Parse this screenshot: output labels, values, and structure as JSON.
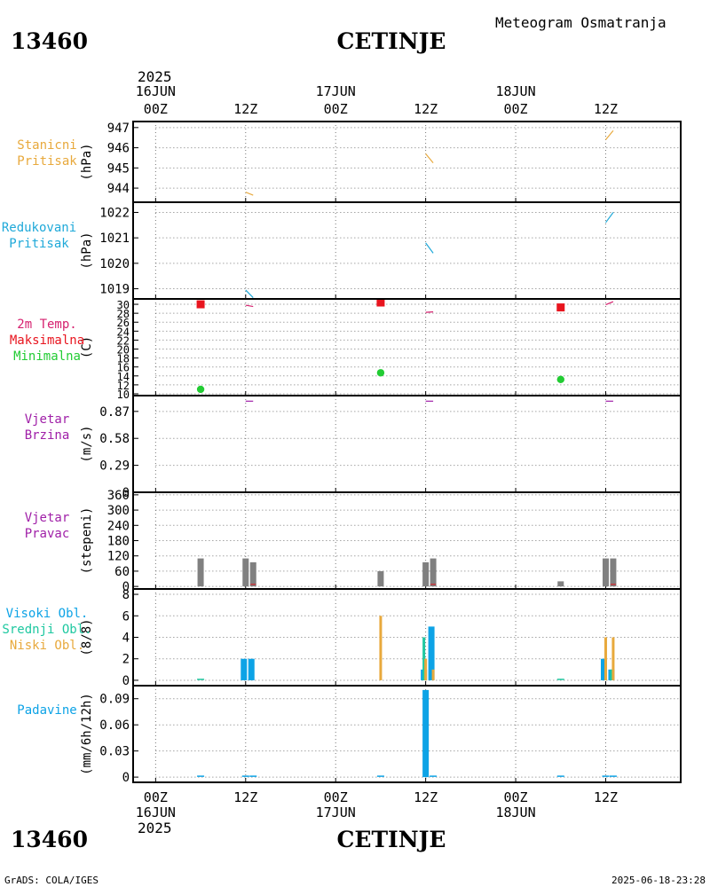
{
  "header": {
    "station_id": "13460",
    "station_name": "CETINJE",
    "meteogram_title": "Meteogram Osmatranja"
  },
  "footer": {
    "station_id": "13460",
    "station_name": "CETINJE",
    "credit": "GrADS: COLA/IGES",
    "timestamp": "2025-06-18-23:28"
  },
  "time_axis": {
    "top_year": "2025",
    "bottom_year": "2025",
    "dates": [
      {
        "label": "16JUN",
        "hour": 0
      },
      {
        "label": "17JUN",
        "hour": 24
      },
      {
        "label": "18JUN",
        "hour": 48
      }
    ],
    "ticks": [
      {
        "label": "00Z",
        "hour": 0
      },
      {
        "label": "12Z",
        "hour": 12
      },
      {
        "label": "00Z",
        "hour": 24
      },
      {
        "label": "12Z",
        "hour": 36
      },
      {
        "label": "00Z",
        "hour": 48
      },
      {
        "label": "12Z",
        "hour": 60
      }
    ],
    "xrange_hours": [
      -3,
      70
    ]
  },
  "colors": {
    "station_pressure": "#e8a93c",
    "reduced_pressure": "#1fa9d9",
    "temp_label": "#d6216f",
    "tmax": "#e8141e",
    "tmin": "#22cc33",
    "wind": "#a020a8",
    "bars_gray": "#808080",
    "high_cloud": "#0da3e6",
    "mid_cloud": "#1ec8a0",
    "low_cloud": "#e8a93c",
    "precip": "#0da3e6"
  },
  "chart_data": [
    {
      "id": "station_pressure",
      "type": "line",
      "label_lines": [
        "Stanicni",
        "Pritisak"
      ],
      "label_color": "#e8a93c",
      "ylabel": "(hPa)",
      "ylim": [
        943.3,
        947.3
      ],
      "yticks": [
        944,
        945,
        946,
        947
      ],
      "series": [
        {
          "name": "Stanicni Pritisak",
          "color": "#e8a93c",
          "segments": [
            [
              [
                12,
                943.8
              ],
              [
                13,
                943.65
              ]
            ],
            [
              [
                36,
                945.7
              ],
              [
                37,
                945.25
              ]
            ],
            [
              [
                60,
                946.4
              ],
              [
                61,
                946.85
              ]
            ]
          ]
        }
      ]
    },
    {
      "id": "reduced_pressure",
      "type": "line",
      "label_lines": [
        "Redukovani",
        "Pritisak"
      ],
      "label_color": "#1fa9d9",
      "ylabel": "(hPa)",
      "ylim": [
        1018.6,
        1022.4
      ],
      "yticks": [
        1019,
        1020,
        1021,
        1022
      ],
      "series": [
        {
          "name": "Redukovani Pritisak",
          "color": "#1fa9d9",
          "segments": [
            [
              [
                12,
                1018.95
              ],
              [
                13,
                1018.65
              ]
            ],
            [
              [
                36,
                1020.8
              ],
              [
                37,
                1020.4
              ]
            ],
            [
              [
                60,
                1021.6
              ],
              [
                61,
                1022.0
              ]
            ]
          ]
        }
      ]
    },
    {
      "id": "temperature",
      "type": "scatter",
      "label_lines": [
        "2m Temp.",
        "Maksimalna",
        "Minimalna"
      ],
      "label_colors": [
        "#d6216f",
        "#e8141e",
        "#22cc33"
      ],
      "ylabel": "(C)",
      "ylim": [
        9.6,
        31.2
      ],
      "yticks": [
        10,
        12,
        14,
        16,
        18,
        20,
        22,
        24,
        26,
        28,
        30
      ],
      "ytick_labels": [
        "10",
        "12",
        "14",
        "16",
        "18",
        "20",
        "22",
        "24",
        "26",
        "28",
        "30"
      ],
      "series": [
        {
          "name": "Maksimalna",
          "color": "#e8141e",
          "marker": "square",
          "points": [
            [
              6,
              30.0
            ],
            [
              30,
              30.4
            ],
            [
              54,
              29.3
            ]
          ]
        },
        {
          "name": "Minimalna",
          "color": "#22cc33",
          "marker": "circle",
          "points": [
            [
              6,
              11.0
            ],
            [
              30,
              14.7
            ],
            [
              54,
              13.2
            ]
          ]
        }
      ],
      "segments_color": "#d6216f",
      "segments": [
        [
          [
            12,
            29.8
          ],
          [
            13,
            29.5
          ]
        ],
        [
          [
            36,
            28.2
          ],
          [
            37,
            28.3
          ]
        ],
        [
          [
            60,
            29.9
          ],
          [
            61,
            30.6
          ]
        ]
      ]
    },
    {
      "id": "wind_speed",
      "type": "line",
      "label_lines": [
        "Vjetar",
        "Brzina"
      ],
      "label_color": "#a020a8",
      "ylabel": "(m/s)",
      "ylim": [
        0,
        1.04
      ],
      "yticks": [
        0,
        0.29,
        0.58,
        0.87
      ],
      "ytick_labels": [
        "0",
        "0.29",
        "0.58",
        "0.87"
      ],
      "series": [
        {
          "name": "Vjetar Brzina",
          "color": "#a020a8",
          "segments": [
            [
              [
                12,
                0.98
              ],
              [
                13,
                0.98
              ]
            ],
            [
              [
                36,
                0.98
              ],
              [
                37,
                0.98
              ]
            ],
            [
              [
                60,
                0.98
              ],
              [
                61,
                0.98
              ]
            ]
          ]
        }
      ]
    },
    {
      "id": "wind_direction",
      "type": "bar",
      "label_lines": [
        "Vjetar",
        "Pravac"
      ],
      "label_color": "#a020a8",
      "ylabel": "(stepeni)",
      "ylim": [
        -10,
        370
      ],
      "yticks": [
        0,
        60,
        120,
        180,
        240,
        300,
        360
      ],
      "series": [
        {
          "name": "Vjetar Pravac",
          "color": "#808080",
          "bars": [
            [
              6,
              110
            ],
            [
              12,
              110
            ],
            [
              13,
              95
            ],
            [
              30,
              60
            ],
            [
              36,
              95
            ],
            [
              37,
              110
            ],
            [
              54,
              20
            ],
            [
              60,
              110
            ],
            [
              61,
              110
            ]
          ]
        }
      ],
      "markers_color": "#e8141e",
      "markers": [
        [
          13,
          8
        ],
        [
          37,
          8
        ],
        [
          61,
          8
        ]
      ]
    },
    {
      "id": "clouds",
      "type": "bar",
      "label_lines": [
        "Visoki Obl.",
        "Srednji Obl.",
        "Niski Obl."
      ],
      "label_colors": [
        "#0da3e6",
        "#1ec8a0",
        "#e8a93c"
      ],
      "ylabel": "(8/8)",
      "ylim": [
        -0.5,
        8.5
      ],
      "yticks": [
        0,
        2,
        4,
        6,
        8
      ],
      "series": [
        {
          "name": "Visoki Obl.",
          "color": "#0da3e6",
          "bars": [
            [
              12,
              2
            ],
            [
              13,
              2
            ],
            [
              36,
              1
            ],
            [
              37,
              5
            ],
            [
              60,
              2
            ],
            [
              61,
              1
            ]
          ]
        },
        {
          "name": "Srednji Obl.",
          "color": "#1ec8a0",
          "bars": [
            [
              36,
              4
            ],
            [
              61,
              1
            ]
          ]
        },
        {
          "name": "Niski Obl.",
          "color": "#e8a93c",
          "bars": [
            [
              30,
              6
            ],
            [
              36,
              2
            ],
            [
              37,
              1
            ],
            [
              60,
              4
            ],
            [
              61,
              4
            ]
          ]
        }
      ],
      "small_ticks": [
        [
          6,
          0
        ],
        [
          54,
          0
        ]
      ]
    },
    {
      "id": "precipitation",
      "type": "bar",
      "label_lines": [
        "Padavine"
      ],
      "label_color": "#0da3e6",
      "ylabel": "(mm/6h/12h)",
      "ylim": [
        -0.006,
        0.105
      ],
      "yticks": [
        0,
        0.03,
        0.06,
        0.09
      ],
      "ytick_labels": [
        "0",
        "0.03",
        "0.06",
        "0.09"
      ],
      "series": [
        {
          "name": "Padavine",
          "color": "#0da3e6",
          "bars": [
            [
              36,
              0.1
            ]
          ]
        }
      ],
      "small_ticks": [
        [
          6,
          0
        ],
        [
          12,
          0
        ],
        [
          13,
          0
        ],
        [
          30,
          0
        ],
        [
          37,
          0
        ],
        [
          54,
          0
        ],
        [
          60,
          0
        ],
        [
          61,
          0
        ]
      ]
    }
  ]
}
